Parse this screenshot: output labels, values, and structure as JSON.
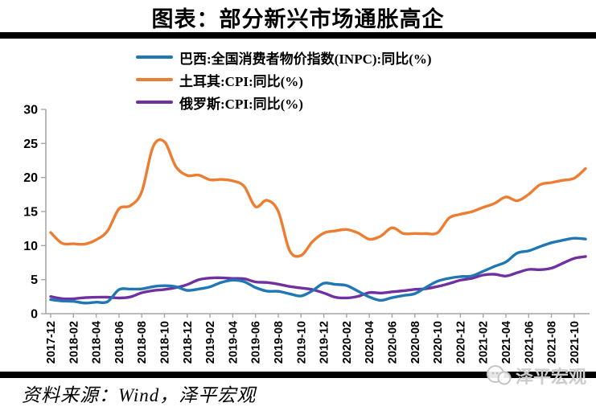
{
  "title": "图表：部分新兴市场通胀高企",
  "source_note": "资料来源：Wind，泽平宏观",
  "watermark": {
    "icon": "chat-bubbles-icon",
    "logo_text": "泽平宏观"
  },
  "colors": {
    "divider_bar": "#000000",
    "axis": "#a6a6a6",
    "tick_text": "#000000"
  },
  "chart_data": {
    "type": "line",
    "title": "图表：部分新兴市场通胀高企",
    "xlabel": "",
    "ylabel": "",
    "ylim": [
      0,
      30
    ],
    "y_ticks": [
      0,
      5,
      10,
      15,
      20,
      25,
      30
    ],
    "grid": false,
    "legend_position": "top",
    "x_tick_labels": [
      "2017-12",
      "2018-02",
      "2018-04",
      "2018-06",
      "2018-08",
      "2018-10",
      "2018-12",
      "2019-02",
      "2019-04",
      "2019-06",
      "2019-08",
      "2019-10",
      "2019-12",
      "2020-02",
      "2020-04",
      "2020-06",
      "2020-08",
      "2020-10",
      "2020-12",
      "2021-02",
      "2021-04",
      "2021-06",
      "2021-08",
      "2021-10"
    ],
    "months": [
      "2017-12",
      "2018-01",
      "2018-02",
      "2018-03",
      "2018-04",
      "2018-05",
      "2018-06",
      "2018-07",
      "2018-08",
      "2018-09",
      "2018-10",
      "2018-11",
      "2018-12",
      "2019-01",
      "2019-02",
      "2019-03",
      "2019-04",
      "2019-05",
      "2019-06",
      "2019-07",
      "2019-08",
      "2019-09",
      "2019-10",
      "2019-11",
      "2019-12",
      "2020-01",
      "2020-02",
      "2020-03",
      "2020-04",
      "2020-05",
      "2020-06",
      "2020-07",
      "2020-08",
      "2020-09",
      "2020-10",
      "2020-11",
      "2020-12",
      "2021-01",
      "2021-02",
      "2021-03",
      "2021-04",
      "2021-05",
      "2021-06",
      "2021-07",
      "2021-08",
      "2021-09",
      "2021-10",
      "2021-11"
    ],
    "series": [
      {
        "name": "巴西:全国消费者物价指数(INPC):同比(%)",
        "color": "#1f77b4",
        "values": [
          2.07,
          1.87,
          1.81,
          1.56,
          1.69,
          1.76,
          3.53,
          3.61,
          3.64,
          3.97,
          4.11,
          3.97,
          3.43,
          3.62,
          3.94,
          4.6,
          4.92,
          4.7,
          3.84,
          3.32,
          3.28,
          2.92,
          2.6,
          3.37,
          4.48,
          4.3,
          4.13,
          3.31,
          2.46,
          1.96,
          2.35,
          2.67,
          2.94,
          3.89,
          4.77,
          5.2,
          5.45,
          5.53,
          6.22,
          6.94,
          7.59,
          8.9,
          9.22,
          9.85,
          10.42,
          10.78,
          11.08,
          10.96
        ]
      },
      {
        "name": "土耳其:CPI:同比(%)",
        "color": "#ed7d31",
        "values": [
          11.92,
          10.35,
          10.26,
          10.23,
          10.85,
          12.15,
          15.39,
          15.85,
          17.9,
          24.52,
          25.24,
          21.62,
          20.3,
          20.35,
          19.67,
          19.71,
          19.5,
          18.71,
          15.72,
          16.65,
          15.01,
          9.26,
          8.55,
          10.56,
          11.84,
          12.15,
          12.37,
          11.86,
          10.94,
          11.39,
          12.62,
          11.76,
          11.77,
          11.75,
          11.89,
          14.03,
          14.6,
          14.97,
          15.61,
          16.19,
          17.14,
          16.59,
          17.53,
          18.95,
          19.25,
          19.58,
          19.89,
          21.31
        ]
      },
      {
        "name": "俄罗斯:CPI:同比(%)",
        "color": "#7030a0",
        "values": [
          2.51,
          2.21,
          2.2,
          2.35,
          2.41,
          2.42,
          2.3,
          2.46,
          3.07,
          3.39,
          3.55,
          3.83,
          4.27,
          4.99,
          5.23,
          5.27,
          5.17,
          5.13,
          4.66,
          4.58,
          4.33,
          3.99,
          3.77,
          3.54,
          3.04,
          2.42,
          2.31,
          2.54,
          3.1,
          3.03,
          3.21,
          3.37,
          3.57,
          3.67,
          3.99,
          4.42,
          4.91,
          5.19,
          5.67,
          5.79,
          5.53,
          6.02,
          6.5,
          6.46,
          6.68,
          7.4,
          8.13,
          8.4
        ]
      }
    ]
  }
}
